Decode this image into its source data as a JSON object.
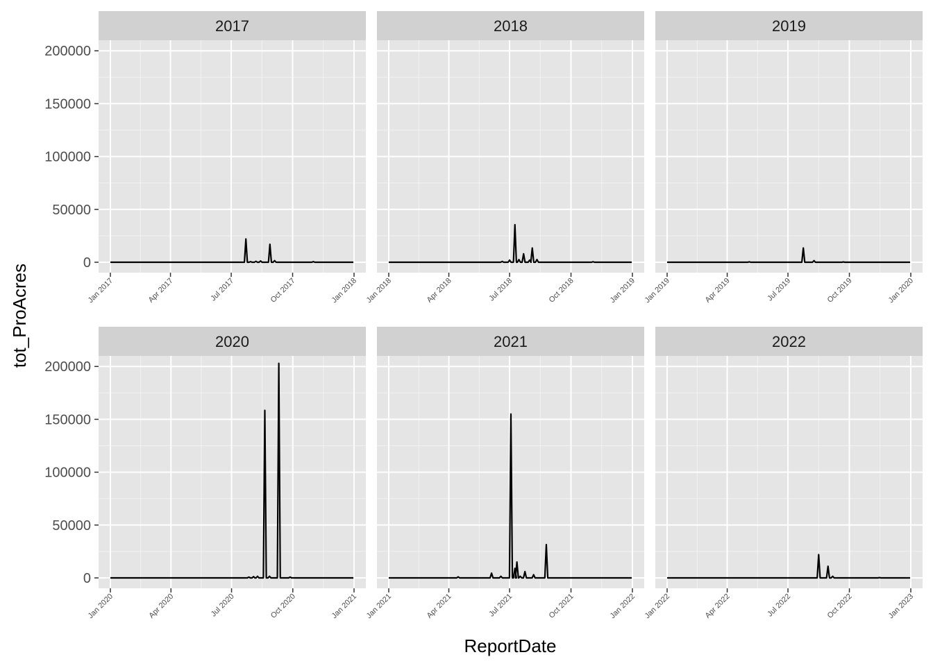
{
  "chart_data": {
    "type": "line",
    "xlabel": "ReportDate",
    "ylabel": "tot_ProAcres",
    "ylim": [
      0,
      210000
    ],
    "yticks": [
      0,
      50000,
      100000,
      150000,
      200000
    ],
    "ytick_labels": [
      "0",
      "50000",
      "100000",
      "150000",
      "200000"
    ],
    "grid": true,
    "line_color": "#000000",
    "panel_background": "#e5e5e5",
    "strip_background": "#d1d1d1",
    "panels": [
      {
        "label": "2017",
        "xlim": [
          "2017-01-01",
          "2018-01-01"
        ],
        "xticks": [
          "2017-01-01",
          "2017-04-01",
          "2017-07-01",
          "2017-10-01",
          "2018-01-01"
        ],
        "xtick_labels": [
          "Jan 2017",
          "Apr 2017",
          "Jul 2017",
          "Oct 2017",
          "Jan 2018"
        ],
        "points": [
          [
            "2017-07-23",
            22000
          ],
          [
            "2017-07-30",
            600
          ],
          [
            "2017-08-07",
            900
          ],
          [
            "2017-08-14",
            1200
          ],
          [
            "2017-08-28",
            17000
          ],
          [
            "2017-09-04",
            1500
          ],
          [
            "2017-11-01",
            600
          ]
        ]
      },
      {
        "label": "2018",
        "xlim": [
          "2018-01-01",
          "2019-01-01"
        ],
        "xticks": [
          "2018-01-01",
          "2018-04-01",
          "2018-07-01",
          "2018-10-01",
          "2019-01-01"
        ],
        "xtick_labels": [
          "Jan 2018",
          "Apr 2018",
          "Jul 2018",
          "Oct 2018",
          "Jan 2019"
        ],
        "points": [
          [
            "2018-06-20",
            800
          ],
          [
            "2018-07-01",
            2000
          ],
          [
            "2018-07-09",
            35500
          ],
          [
            "2018-07-15",
            2500
          ],
          [
            "2018-07-22",
            8000
          ],
          [
            "2018-07-31",
            2000
          ],
          [
            "2018-08-04",
            13500
          ],
          [
            "2018-08-11",
            2500
          ],
          [
            "2018-11-03",
            500
          ]
        ]
      },
      {
        "label": "2019",
        "xlim": [
          "2019-01-01",
          "2020-01-01"
        ],
        "xticks": [
          "2019-01-01",
          "2019-04-01",
          "2019-07-01",
          "2019-10-01",
          "2020-01-01"
        ],
        "xtick_labels": [
          "Jan 2019",
          "Apr 2019",
          "Jul 2019",
          "Oct 2019",
          "Jan 2020"
        ],
        "points": [
          [
            "2019-05-04",
            400
          ],
          [
            "2019-07-24",
            13500
          ],
          [
            "2019-08-09",
            1500
          ],
          [
            "2019-09-22",
            300
          ]
        ]
      },
      {
        "label": "2020",
        "xlim": [
          "2020-01-01",
          "2021-01-01"
        ],
        "xticks": [
          "2020-01-01",
          "2020-04-01",
          "2020-07-01",
          "2020-10-01",
          "2021-01-01"
        ],
        "xtick_labels": [
          "Jan 2020",
          "Apr 2020",
          "Jul 2020",
          "Oct 2020",
          "Jan 2021"
        ],
        "points": [
          [
            "2020-07-27",
            800
          ],
          [
            "2020-08-03",
            1200
          ],
          [
            "2020-08-09",
            1500
          ],
          [
            "2020-08-20",
            158500
          ],
          [
            "2020-08-27",
            1500
          ],
          [
            "2020-09-10",
            203000
          ],
          [
            "2020-09-27",
            800
          ]
        ]
      },
      {
        "label": "2021",
        "xlim": [
          "2021-01-01",
          "2022-01-01"
        ],
        "xticks": [
          "2021-01-01",
          "2021-04-01",
          "2021-07-01",
          "2021-10-01",
          "2022-01-01"
        ],
        "xtick_labels": [
          "Jan 2021",
          "Apr 2021",
          "Jul 2021",
          "Oct 2021",
          "Jan 2022"
        ],
        "points": [
          [
            "2021-04-15",
            1000
          ],
          [
            "2021-06-04",
            4500
          ],
          [
            "2021-06-18",
            1500
          ],
          [
            "2021-07-03",
            155000
          ],
          [
            "2021-07-09",
            9000
          ],
          [
            "2021-07-12",
            15000
          ],
          [
            "2021-07-17",
            1500
          ],
          [
            "2021-07-24",
            6000
          ],
          [
            "2021-08-06",
            3000
          ],
          [
            "2021-08-25",
            31500
          ]
        ]
      },
      {
        "label": "2022",
        "xlim": [
          "2022-01-01",
          "2023-01-01"
        ],
        "xticks": [
          "2022-01-01",
          "2022-04-01",
          "2022-07-01",
          "2022-10-01",
          "2023-01-01"
        ],
        "xtick_labels": [
          "Jan 2022",
          "Apr 2022",
          "Jul 2022",
          "Oct 2022",
          "Jan 2023"
        ],
        "points": [
          [
            "2022-08-16",
            22000
          ],
          [
            "2022-08-30",
            11000
          ],
          [
            "2022-09-06",
            1500
          ],
          [
            "2022-11-15",
            300
          ]
        ]
      }
    ]
  }
}
